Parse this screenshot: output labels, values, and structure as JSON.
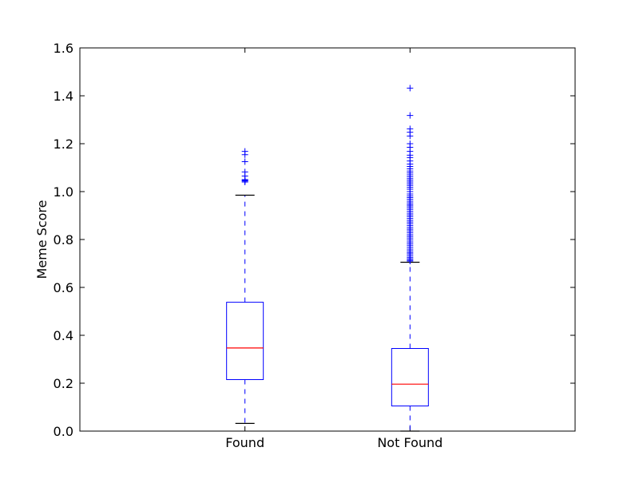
{
  "chart_data": {
    "type": "boxplot",
    "title": "",
    "xlabel": "",
    "ylabel": "Meme Score",
    "ylim": [
      0.0,
      1.6
    ],
    "yticks": [
      "0.0",
      "0.2",
      "0.4",
      "0.6",
      "0.8",
      "1.0",
      "1.2",
      "1.4",
      "1.6"
    ],
    "grid": false,
    "legend": "none",
    "categories": [
      "Found",
      "Not Found"
    ],
    "boxes": [
      {
        "whisker_low": 0.032,
        "q1": 0.215,
        "median": 0.347,
        "q3": 0.538,
        "whisker_high": 0.985,
        "outliers": [
          1.168,
          1.154,
          1.125,
          1.082,
          1.065,
          1.05,
          1.047,
          1.044,
          1.04
        ]
      },
      {
        "whisker_low": 0.0,
        "q1": 0.105,
        "median": 0.196,
        "q3": 0.345,
        "whisker_high": 0.705,
        "outliers": [
          1.432,
          1.318,
          1.262,
          1.248,
          1.232,
          1.2,
          1.185,
          1.168,
          1.152,
          1.142,
          1.128,
          1.115,
          1.105,
          1.095,
          1.086,
          1.078,
          1.07,
          1.062,
          1.054,
          1.047,
          1.04,
          1.033,
          1.026,
          1.018,
          1.01,
          1.0,
          0.99,
          0.982,
          0.975,
          0.968,
          0.96,
          0.953,
          0.946,
          0.94,
          0.933,
          0.926,
          0.918,
          0.91,
          0.903,
          0.896,
          0.888,
          0.88,
          0.873,
          0.866,
          0.858,
          0.85,
          0.843,
          0.836,
          0.828,
          0.82,
          0.813,
          0.806,
          0.798,
          0.79,
          0.783,
          0.776,
          0.768,
          0.76,
          0.753,
          0.746,
          0.74,
          0.733,
          0.726,
          0.72,
          0.714,
          0.71
        ]
      }
    ],
    "colors": {
      "box": "#0000ff",
      "median": "#ff0000",
      "whisker": "#0000ff",
      "cap": "#000000",
      "flier": "#0000ff",
      "axes": "#000000"
    }
  }
}
